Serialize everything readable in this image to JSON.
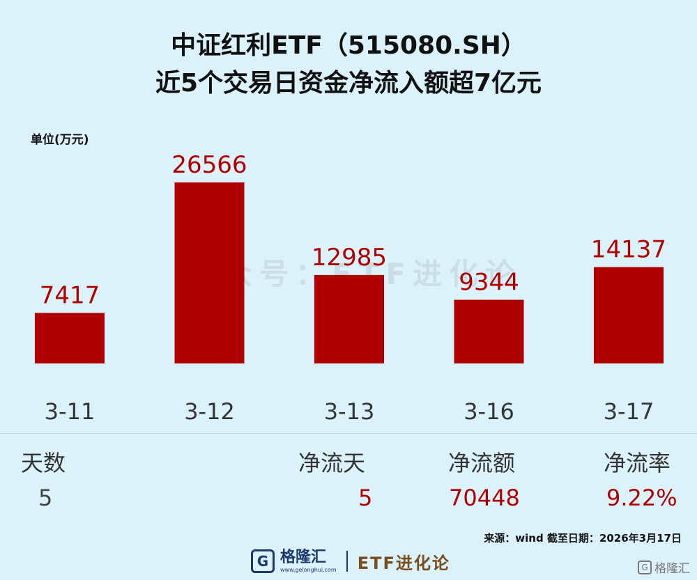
{
  "title_line1": "中证红利ETF（515080.SH）",
  "title_line2": "近5个交易日资金净流入额超7亿元",
  "unit_label": "单位(万元)",
  "watermark": "公众号：ETF进化论",
  "chart_data": {
    "type": "bar",
    "categories": [
      "3-11",
      "3-12",
      "3-13",
      "3-16",
      "3-17"
    ],
    "values": [
      7417,
      26566,
      12985,
      9344,
      14137
    ],
    "ylabel": "单位(万元)",
    "ylim": [
      0,
      26566
    ],
    "grid": false,
    "colors": {
      "bar": "#b00000",
      "value_label": "#b00000",
      "category_label": "#333333"
    }
  },
  "stats": {
    "days_label": "天数",
    "days_value": "5",
    "inflow_days_label": "净流天",
    "inflow_days_value": "5",
    "net_flow_label": "净流额",
    "net_flow_value": "70448",
    "net_rate_label": "净流率",
    "net_rate_value": "9.22%"
  },
  "source": "来源：wind  截至日期：2026年3月17日",
  "brand": {
    "logo_icon": "G",
    "name": "格隆汇",
    "url": "www.gelonghui.com",
    "etf_name": "ETF进化论"
  },
  "corner": {
    "icon": "G",
    "name": "格隆汇"
  }
}
